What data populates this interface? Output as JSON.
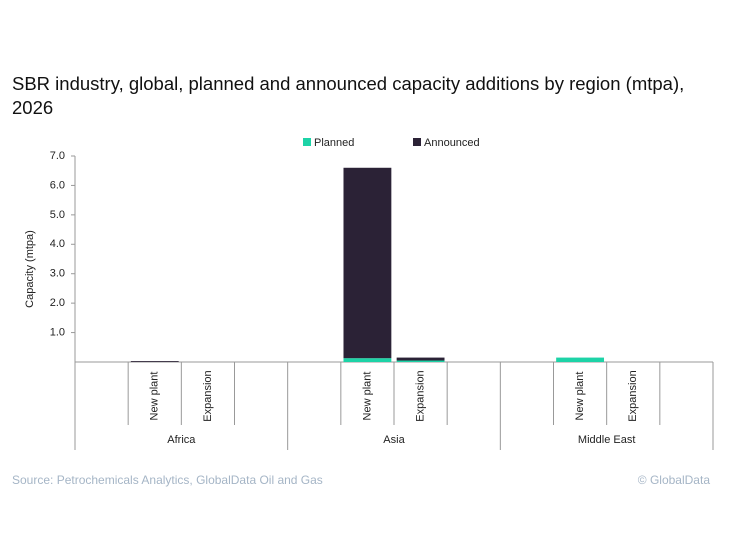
{
  "chart_data": {
    "type": "stacked-bar",
    "title": "SBR industry, global, planned and announced capacity additions by region (mtpa), 2026",
    "y_label": "Capacity (mtpa)",
    "groups": [
      "Africa",
      "Asia",
      "Middle East"
    ],
    "categories": [
      "New plant",
      "Expansion",
      "New plant",
      "Expansion",
      "New plant",
      "Expansion"
    ],
    "series": [
      {
        "name": "Planned",
        "color": "#1dd3a7",
        "values": [
          0,
          0,
          0.13,
          0.05,
          0.15,
          0
        ]
      },
      {
        "name": "Announced",
        "color": "#2b2236",
        "values": [
          0.03,
          0,
          6.47,
          0.1,
          0,
          0
        ]
      }
    ],
    "ylim": [
      0,
      7
    ],
    "yticks": [
      {
        "value": 1,
        "label": "1.0"
      },
      {
        "value": 2,
        "label": "2.0"
      },
      {
        "value": 3,
        "label": "3.0"
      },
      {
        "value": 4,
        "label": "4.0"
      },
      {
        "value": 5,
        "label": "5.0"
      },
      {
        "value": 6,
        "label": "6.0"
      },
      {
        "value": 7,
        "label": "7.0"
      }
    ],
    "source": "Source: Petrochemicals Analytics, GlobalData Oil and Gas",
    "credit": "© GlobalData"
  }
}
